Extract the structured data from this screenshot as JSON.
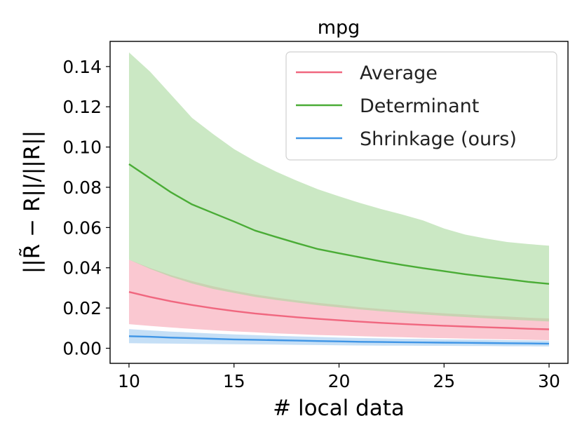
{
  "chart_data": {
    "type": "line",
    "title": "mpg",
    "xlabel": "# local data",
    "ylabel": "||R̃ − R||/||R||",
    "xlim": [
      9.1,
      30.9
    ],
    "ylim": [
      -0.0075,
      0.1525
    ],
    "xticks": [
      10,
      15,
      20,
      25,
      30
    ],
    "yticks": [
      0.0,
      0.02,
      0.04,
      0.06,
      0.08,
      0.1,
      0.12,
      0.14
    ],
    "ytick_format": 2,
    "grid": false,
    "legend_position": "top-right",
    "x": [
      10,
      11,
      12,
      13,
      14,
      15,
      16,
      17,
      18,
      19,
      20,
      21,
      22,
      23,
      24,
      25,
      26,
      27,
      28,
      29,
      30
    ],
    "series": [
      {
        "name": "Average",
        "color": "#f0677f",
        "band_color": "#f7a3b3",
        "values": [
          0.028,
          0.0255,
          0.0233,
          0.0215,
          0.0199,
          0.0185,
          0.0173,
          0.0163,
          0.0154,
          0.0146,
          0.0139,
          0.0132,
          0.0126,
          0.0121,
          0.0116,
          0.0112,
          0.0108,
          0.0104,
          0.0101,
          0.0097,
          0.0094
        ],
        "lower": [
          0.012,
          0.0111,
          0.0103,
          0.0096,
          0.009,
          0.0084,
          0.0079,
          0.0074,
          0.007,
          0.0066,
          0.0063,
          0.006,
          0.0057,
          0.0055,
          0.0052,
          0.005,
          0.0048,
          0.0046,
          0.0044,
          0.0042,
          0.004
        ],
        "upper": [
          0.044,
          0.0399,
          0.0363,
          0.0334,
          0.0308,
          0.0286,
          0.0267,
          0.0252,
          0.0238,
          0.0226,
          0.0215,
          0.0204,
          0.0195,
          0.0187,
          0.018,
          0.0174,
          0.0168,
          0.0162,
          0.0158,
          0.0152,
          0.0148
        ]
      },
      {
        "name": "Determinant",
        "color": "#4aac36",
        "band_color": "#a9d89d",
        "values": [
          0.0915,
          0.0845,
          0.0775,
          0.0715,
          0.0672,
          0.063,
          0.0585,
          0.0553,
          0.0522,
          0.0493,
          0.0472,
          0.0452,
          0.0432,
          0.0414,
          0.0398,
          0.0383,
          0.0368,
          0.0355,
          0.0343,
          0.033,
          0.032
        ],
        "lower": [
          0.044,
          0.0395,
          0.0355,
          0.0322,
          0.0295,
          0.0275,
          0.0255,
          0.024,
          0.0227,
          0.0214,
          0.0203,
          0.0193,
          0.0184,
          0.0176,
          0.0168,
          0.0161,
          0.0155,
          0.0149,
          0.0143,
          0.0138,
          0.0133
        ],
        "upper": [
          0.147,
          0.1375,
          0.126,
          0.1145,
          0.1065,
          0.099,
          0.093,
          0.0878,
          0.0832,
          0.079,
          0.0755,
          0.0722,
          0.0692,
          0.0665,
          0.0635,
          0.0595,
          0.0565,
          0.0545,
          0.0528,
          0.0518,
          0.051
        ]
      },
      {
        "name": "Shrinkage (ours)",
        "color": "#3f95e6",
        "band_color": "#9fcaf0",
        "values": [
          0.006,
          0.0057,
          0.0053,
          0.005,
          0.0047,
          0.0044,
          0.0042,
          0.004,
          0.0038,
          0.0036,
          0.0034,
          0.0032,
          0.0031,
          0.003,
          0.0029,
          0.0028,
          0.0027,
          0.0026,
          0.0025,
          0.0024,
          0.0023
        ],
        "lower": [
          0.0025,
          0.0024,
          0.0023,
          0.0022,
          0.0021,
          0.002,
          0.0019,
          0.0018,
          0.0017,
          0.0016,
          0.0015,
          0.0014,
          0.0013,
          0.0013,
          0.0012,
          0.0012,
          0.0011,
          0.0011,
          0.001,
          0.001,
          0.0009
        ],
        "upper": [
          0.0095,
          0.0089,
          0.0083,
          0.0078,
          0.0073,
          0.0069,
          0.0065,
          0.0062,
          0.0059,
          0.0056,
          0.0053,
          0.0051,
          0.0049,
          0.0047,
          0.0046,
          0.0044,
          0.0043,
          0.0042,
          0.004,
          0.0039,
          0.0038
        ]
      }
    ]
  }
}
